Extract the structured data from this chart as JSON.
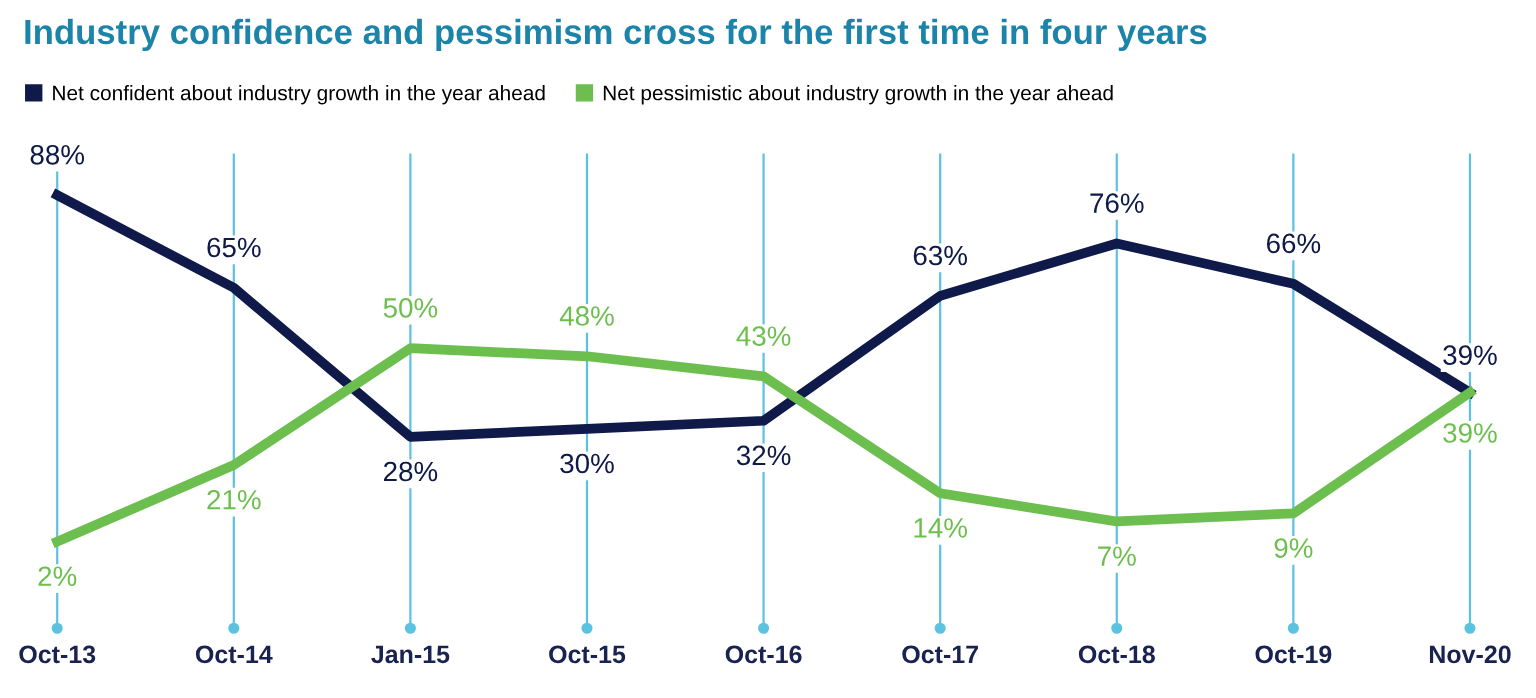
{
  "chart_data": {
    "type": "line",
    "title": "Industry confidence and pessimism cross for the first time in four years",
    "categories": [
      "Oct-13",
      "Oct-14",
      "Jan-15",
      "Oct-15",
      "Oct-16",
      "Oct-17",
      "Oct-18",
      "Oct-19",
      "Nov-20"
    ],
    "series": [
      {
        "name": "Net confident about industry growth in the year ahead",
        "color": "#0f1a4a",
        "values": [
          88,
          65,
          28,
          30,
          32,
          63,
          76,
          66,
          39
        ],
        "value_labels": [
          "88%",
          "65%",
          "28%",
          "30%",
          "32%",
          "63%",
          "76%",
          "66%",
          "39%"
        ]
      },
      {
        "name": "Net pessimistic about industry growth in the year ahead",
        "color": "#6cbf4e",
        "values": [
          2,
          21,
          50,
          48,
          43,
          14,
          7,
          9,
          39
        ],
        "value_labels": [
          "2%",
          "21%",
          "50%",
          "48%",
          "43%",
          "14%",
          "7%",
          "9%",
          "39%"
        ]
      }
    ],
    "grid": "x",
    "legend": "top left",
    "marker": "none",
    "line_style": "solid",
    "tick_labels": "x"
  }
}
